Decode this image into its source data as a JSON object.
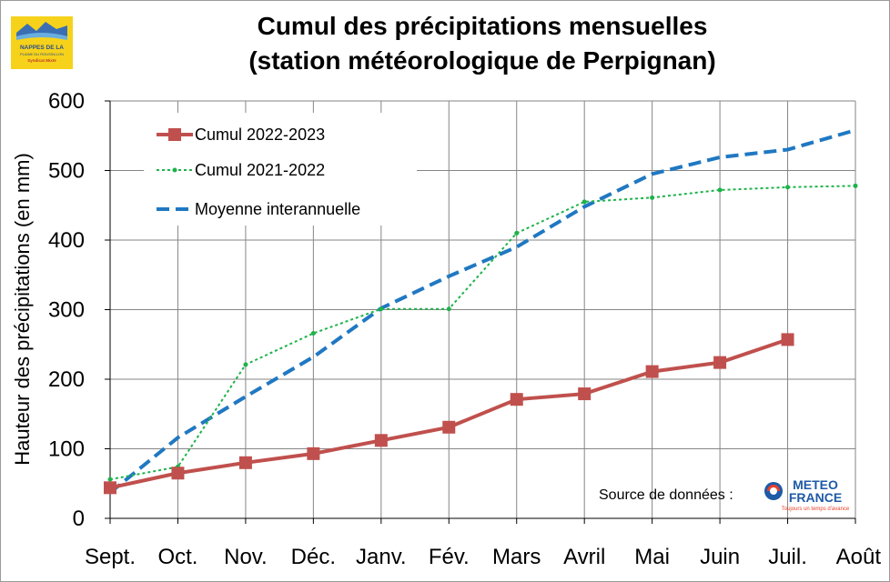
{
  "logo": {
    "line1": "NAPPES DE LA",
    "line2": "PLAINE DU ROUSSILLON",
    "line3": "Syndicat Mixte"
  },
  "source_label": "Source de données :",
  "meteo_logo": {
    "line1": "METEO",
    "line2": "FRANCE",
    "tagline": "Toujours un temps d'avance"
  },
  "colors": {
    "cumul_2022_2023": "#c0504d",
    "cumul_2021_2022": "#1db34a",
    "moyenne": "#1f78c2",
    "grid": "#868686"
  },
  "chart_data": {
    "type": "line",
    "title_line1": "Cumul des précipitations mensuelles",
    "title_line2": "(station météorologique de Perpignan)",
    "xlabel": "",
    "ylabel": "Hauteur des précipitations (en mm)",
    "categories": [
      "Sept.",
      "Oct.",
      "Nov.",
      "Déc.",
      "Janv.",
      "Fév.",
      "Mars",
      "Avril",
      "Mai",
      "Juin",
      "Juil.",
      "Août"
    ],
    "ylim": [
      0,
      600
    ],
    "yticks": [
      0,
      100,
      200,
      300,
      400,
      500,
      600
    ],
    "grid": true,
    "legend_position": "top-left",
    "series": [
      {
        "name": "Cumul 2022-2023",
        "style": "solid-square-markers",
        "values": [
          44,
          65,
          80,
          93,
          112,
          131,
          171,
          179,
          211,
          224,
          257,
          null
        ]
      },
      {
        "name": "Cumul 2021-2022",
        "style": "dotted-small-markers",
        "values": [
          56,
          74,
          221,
          266,
          301,
          301,
          410,
          455,
          461,
          472,
          476,
          478
        ]
      },
      {
        "name": "Moyenne interannuelle",
        "style": "dashed",
        "values": [
          37,
          116,
          175,
          232,
          302,
          348,
          390,
          448,
          495,
          519,
          530,
          558
        ]
      }
    ]
  }
}
